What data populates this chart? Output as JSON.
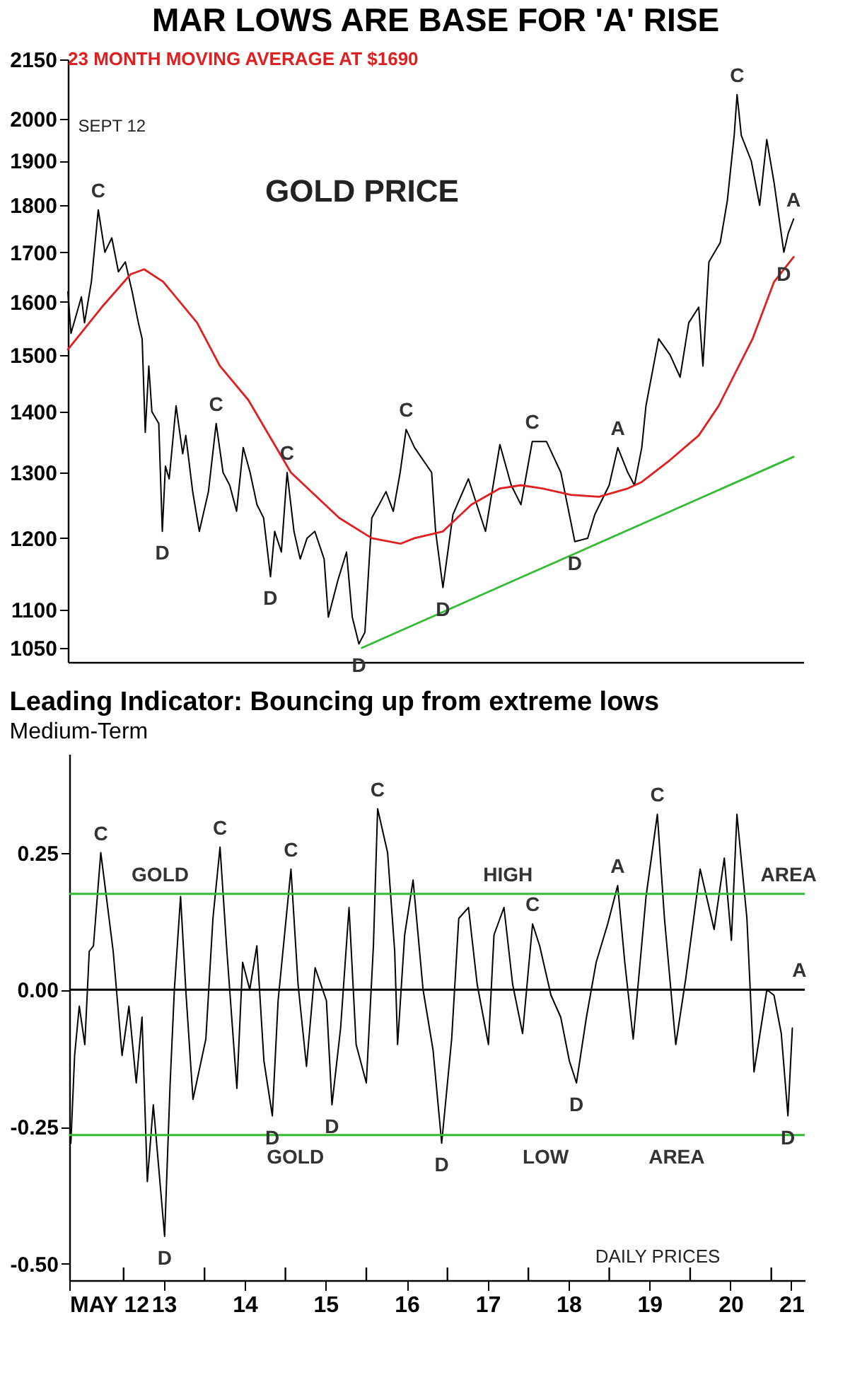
{
  "chart_data": [
    {
      "type": "line",
      "title": "MAR LOWS ARE BASE FOR 'A' RISE",
      "annotations": [
        "GOLD PRICE",
        "SEPT 12",
        {
          "text": "C",
          "x": "2012-09-15",
          "y": 1790
        },
        {
          "text": "D",
          "x": "2013-07-01",
          "y": 1210
        },
        {
          "text": "C",
          "x": "2014-03-01",
          "y": 1380
        },
        {
          "text": "D",
          "x": "2014-11-01",
          "y": 1145
        },
        {
          "text": "C",
          "x": "2015-01-15",
          "y": 1300
        },
        {
          "text": "D",
          "x": "2015-12-05",
          "y": 1055
        },
        {
          "text": "C",
          "x": "2016-07-05",
          "y": 1370
        },
        {
          "text": "D",
          "x": "2016-12-18",
          "y": 1130
        },
        {
          "text": "C",
          "x": "2018-01-25",
          "y": 1350
        },
        {
          "text": "D",
          "x": "2018-08-05",
          "y": 1195
        },
        {
          "text": "A",
          "x": "2019-02-15",
          "y": 1340
        },
        {
          "text": "C",
          "x": "2020-08-06",
          "y": 2060
        },
        {
          "text": "A",
          "x": "2021-04-18",
          "y": 1770
        },
        {
          "text": "D",
          "x": "2021-03-05",
          "y": 1700
        }
      ],
      "xlim": [
        "2012-05-01",
        "2021-06-01"
      ],
      "ylim": [
        1032,
        2150
      ],
      "yticks": [
        1050,
        1100,
        1200,
        1300,
        1400,
        1500,
        1600,
        1700,
        1800,
        1900,
        2000,
        2150
      ],
      "log": true,
      "tick_labels": "y",
      "series": [
        {
          "color": "#000000",
          "x": [
            "2012-05-01",
            "2012-05-15",
            "2012-07-01",
            "2012-07-15",
            "2012-08-15",
            "2012-09-15",
            "2012-10-15",
            "2012-11-15",
            "2012-12-15",
            "2013-01-15",
            "2013-02-15",
            "2013-03-15",
            "2013-04-01",
            "2013-04-15",
            "2013-05-01",
            "2013-05-15",
            "2013-06-15",
            "2013-07-01",
            "2013-07-15",
            "2013-08-01",
            "2013-09-01",
            "2013-10-01",
            "2013-10-15",
            "2013-11-15",
            "2013-12-15",
            "2014-01-25",
            "2014-03-01",
            "2014-04-01",
            "2014-05-01",
            "2014-06-01",
            "2014-07-01",
            "2014-08-01",
            "2014-09-01",
            "2014-10-01",
            "2014-11-01",
            "2014-11-20",
            "2014-12-20",
            "2015-01-15",
            "2015-02-15",
            "2015-03-15",
            "2015-04-15",
            "2015-05-20",
            "2015-07-01",
            "2015-07-20",
            "2015-09-01",
            "2015-10-10",
            "2015-11-05",
            "2015-12-05",
            "2016-01-01",
            "2016-02-01",
            "2016-03-05",
            "2016-04-05",
            "2016-05-08",
            "2016-06-08",
            "2016-07-05",
            "2016-08-12",
            "2016-10-28",
            "2016-11-15",
            "2016-12-18",
            "2017-02-01",
            "2017-04-12",
            "2017-06-28",
            "2017-09-01",
            "2017-10-22",
            "2017-12-05",
            "2018-01-25",
            "2018-03-30",
            "2018-06-03",
            "2018-08-05",
            "2018-10-02",
            "2018-11-03",
            "2019-01-07",
            "2019-02-15",
            "2019-04-01",
            "2019-05-01",
            "2019-06-03",
            "2019-06-22",
            "2019-08-18",
            "2019-10-09",
            "2019-11-23",
            "2020-01-01",
            "2020-02-15",
            "2020-03-05",
            "2020-04-01",
            "2020-05-22",
            "2020-06-23",
            "2020-07-24",
            "2020-08-06",
            "2020-08-25",
            "2020-10-09",
            "2020-11-16",
            "2020-12-18",
            "2021-01-20",
            "2021-03-05",
            "2021-03-25",
            "2021-04-18"
          ],
          "values": [
            1620,
            1540,
            1610,
            1560,
            1640,
            1790,
            1700,
            1730,
            1660,
            1680,
            1620,
            1560,
            1530,
            1365,
            1480,
            1400,
            1380,
            1210,
            1310,
            1290,
            1410,
            1330,
            1360,
            1270,
            1210,
            1270,
            1380,
            1300,
            1280,
            1240,
            1340,
            1300,
            1250,
            1230,
            1145,
            1210,
            1180,
            1300,
            1210,
            1170,
            1200,
            1210,
            1170,
            1090,
            1140,
            1180,
            1090,
            1055,
            1070,
            1230,
            1250,
            1270,
            1240,
            1300,
            1370,
            1340,
            1300,
            1210,
            1130,
            1235,
            1290,
            1210,
            1345,
            1280,
            1250,
            1350,
            1350,
            1300,
            1195,
            1200,
            1235,
            1280,
            1340,
            1300,
            1280,
            1340,
            1410,
            1530,
            1500,
            1460,
            1560,
            1590,
            1480,
            1680,
            1720,
            1810,
            1960,
            2060,
            1960,
            1900,
            1800,
            1950,
            1850,
            1700,
            1740,
            1770
          ]
        },
        {
          "name": "23 MONTH MOVING AVERAGE AT $1690",
          "color": "#e02020",
          "x": [
            "2012-05-01",
            "2012-10-01",
            "2013-02-08",
            "2013-04-10",
            "2013-07-05",
            "2013-12-05",
            "2014-03-18",
            "2014-07-24",
            "2015-02-01",
            "2015-09-07",
            "2016-02-01",
            "2016-06-09",
            "2016-08-12",
            "2016-12-18",
            "2017-04-25",
            "2017-09-01",
            "2017-12-05",
            "2018-03-12",
            "2018-07-18",
            "2018-11-22",
            "2019-04-01",
            "2019-06-03",
            "2019-10-09",
            "2020-02-15",
            "2020-05-15",
            "2020-10-15",
            "2021-01-20",
            "2021-04-18"
          ],
          "values": [
            1510,
            1590,
            1655,
            1665,
            1640,
            1560,
            1480,
            1420,
            1300,
            1230,
            1200,
            1192,
            1200,
            1210,
            1250,
            1275,
            1280,
            1275,
            1265,
            1262,
            1275,
            1285,
            1320,
            1360,
            1410,
            1530,
            1640,
            1690
          ]
        },
        {
          "color": "#33bb33",
          "x": [
            "2015-12-18",
            "2021-04-18"
          ],
          "values": [
            1050,
            1325
          ]
        }
      ]
    },
    {
      "type": "line",
      "title": "Leading Indicator: Bouncing up from extreme lows",
      "subtitle": "Medium-Term",
      "annotations": [
        "DAILY PRICES",
        {
          "text": "C",
          "x": "2012-09-20",
          "y": 0.25
        },
        {
          "text": "D",
          "x": "2013-07-05",
          "y": -0.45
        },
        {
          "text": "C",
          "x": "2014-03-12",
          "y": 0.26
        },
        {
          "text": "D",
          "x": "2014-11-03",
          "y": -0.23
        },
        {
          "text": "C",
          "x": "2015-01-26",
          "y": 0.22
        },
        {
          "text": "D",
          "x": "2015-07-30",
          "y": -0.21
        },
        {
          "text": "C",
          "x": "2016-02-21",
          "y": 0.33
        },
        {
          "text": "D",
          "x": "2016-12-06",
          "y": -0.28
        },
        {
          "text": "C",
          "x": "2018-01-20",
          "y": 0.12
        },
        {
          "text": "D",
          "x": "2018-08-06",
          "y": -0.17
        },
        {
          "text": "A",
          "x": "2019-02-08",
          "y": 0.19
        },
        {
          "text": "C",
          "x": "2019-08-06",
          "y": 0.32
        },
        {
          "text": "A",
          "x": "2021-05-08",
          "y": 0
        },
        {
          "text": "D",
          "x": "2021-03-17",
          "y": -0.23
        },
        {
          "text": "GOLD",
          "x": "2013-06-15",
          "y": 0.175
        },
        {
          "text": "HIGH",
          "x": "2017-10-01",
          "y": 0.175
        },
        {
          "text": "AREA",
          "x": "2021-03-20",
          "y": 0.175
        },
        {
          "text": "GOLD",
          "x": "2015-02-15",
          "y": -0.265
        },
        {
          "text": "LOW",
          "x": "2018-03-20",
          "y": -0.265
        },
        {
          "text": "AREA",
          "x": "2019-11-01",
          "y": -0.265
        }
      ],
      "xlim": [
        "2012-05-01",
        "2021-06-01"
      ],
      "xticks": [
        {
          "value": "2012-05-01",
          "label": "MAY 12"
        },
        {
          "value": "2013-01-01",
          "label": null
        },
        {
          "value": "2013-07-01",
          "label": "13"
        },
        {
          "value": "2014-01-01",
          "label": null
        },
        {
          "value": "2014-07-01",
          "label": "14"
        },
        {
          "value": "2015-01-01",
          "label": null
        },
        {
          "value": "2015-07-01",
          "label": "15"
        },
        {
          "value": "2016-01-01",
          "label": null
        },
        {
          "value": "2016-07-01",
          "label": "16"
        },
        {
          "value": "2017-01-01",
          "label": null
        },
        {
          "value": "2017-07-01",
          "label": "17"
        },
        {
          "value": "2018-01-01",
          "label": null
        },
        {
          "value": "2018-07-01",
          "label": "18"
        },
        {
          "value": "2019-01-01",
          "label": null
        },
        {
          "value": "2019-07-01",
          "label": "19"
        },
        {
          "value": "2020-01-01",
          "label": null
        },
        {
          "value": "2020-07-01",
          "label": "20"
        },
        {
          "value": "2021-01-01",
          "label": null
        },
        {
          "value": "2021-04-01",
          "label": "21"
        }
      ],
      "ylim": [
        -0.53,
        0.43
      ],
      "yticks": [
        0.25,
        {
          "value": 0,
          "label": "0.00"
        },
        -0.25,
        {
          "value": -0.5,
          "label": "-0.50"
        }
      ],
      "ref_lines": [
        {
          "axis": "y",
          "value": 0.175,
          "color": "#33bb33"
        },
        {
          "axis": "y",
          "value": -0.265,
          "color": "#33bb33"
        },
        {
          "axis": "y",
          "value": 0,
          "color": "#000000"
        }
      ],
      "series": [
        {
          "color": "#000000",
          "x": [
            "2012-05-08",
            "2012-05-25",
            "2012-06-15",
            "2012-07-10",
            "2012-07-30",
            "2012-08-18",
            "2012-09-20",
            "2012-10-15",
            "2012-11-15",
            "2012-12-25",
            "2013-01-25",
            "2013-02-27",
            "2013-03-25",
            "2013-04-18",
            "2013-05-15",
            "2013-07-05",
            "2013-07-30",
            "2013-08-18",
            "2013-09-15",
            "2013-10-10",
            "2013-11-10",
            "2014-01-07",
            "2014-02-08",
            "2014-03-12",
            "2014-04-12",
            "2014-05-27",
            "2014-06-22",
            "2014-07-24",
            "2014-08-25",
            "2014-09-26",
            "2014-11-03",
            "2014-11-29",
            "2015-01-26",
            "2015-02-27",
            "2015-04-06",
            "2015-05-15",
            "2015-07-05",
            "2015-07-30",
            "2015-09-07",
            "2015-10-15",
            "2015-11-16",
            "2016-01-01",
            "2016-02-02",
            "2016-02-21",
            "2016-04-06",
            "2016-05-08",
            "2016-05-21",
            "2016-06-22",
            "2016-07-30",
            "2016-09-13",
            "2016-10-28",
            "2016-12-06",
            "2017-01-20",
            "2017-02-21",
            "2017-04-06",
            "2017-05-15",
            "2017-07-05",
            "2017-07-30",
            "2017-09-13",
            "2017-10-22",
            "2017-12-06",
            "2018-01-20",
            "2018-02-21",
            "2018-04-13",
            "2018-05-27",
            "2018-07-05",
            "2018-08-06",
            "2018-09-20",
            "2018-11-03",
            "2018-12-25",
            "2019-02-08",
            "2019-03-12",
            "2019-04-19",
            "2019-06-16",
            "2019-08-06",
            "2019-09-07",
            "2019-10-28",
            "2019-12-12",
            "2020-02-15",
            "2020-04-18",
            "2020-06-03",
            "2020-07-05",
            "2020-07-30",
            "2020-09-13",
            "2020-10-15",
            "2020-12-12",
            "2021-01-13",
            "2021-02-15",
            "2021-03-17",
            "2021-04-06"
          ],
          "values": [
            -0.28,
            -0.12,
            -0.03,
            -0.1,
            0.07,
            0.08,
            0.25,
            0.17,
            0.07,
            -0.12,
            -0.03,
            -0.17,
            -0.05,
            -0.35,
            -0.21,
            -0.45,
            -0.17,
            0.0,
            0.17,
            -0.01,
            -0.2,
            -0.09,
            0.13,
            0.26,
            0.07,
            -0.18,
            0.05,
            0.0,
            0.08,
            -0.13,
            -0.23,
            -0.02,
            0.22,
            0.01,
            -0.14,
            0.04,
            -0.02,
            -0.21,
            -0.07,
            0.15,
            -0.1,
            -0.17,
            0.08,
            0.33,
            0.25,
            0.07,
            -0.1,
            0.1,
            0.2,
            0.0,
            -0.11,
            -0.28,
            -0.09,
            0.13,
            0.15,
            0.01,
            -0.1,
            0.1,
            0.15,
            0.01,
            -0.08,
            0.12,
            0.08,
            -0.01,
            -0.05,
            -0.13,
            -0.17,
            -0.05,
            0.05,
            0.12,
            0.19,
            0.05,
            -0.09,
            0.17,
            0.32,
            0.13,
            -0.1,
            0.02,
            0.22,
            0.11,
            0.24,
            0.09,
            0.32,
            0.13,
            -0.15,
            0.0,
            -0.01,
            -0.08,
            -0.23,
            -0.07
          ]
        }
      ]
    }
  ]
}
